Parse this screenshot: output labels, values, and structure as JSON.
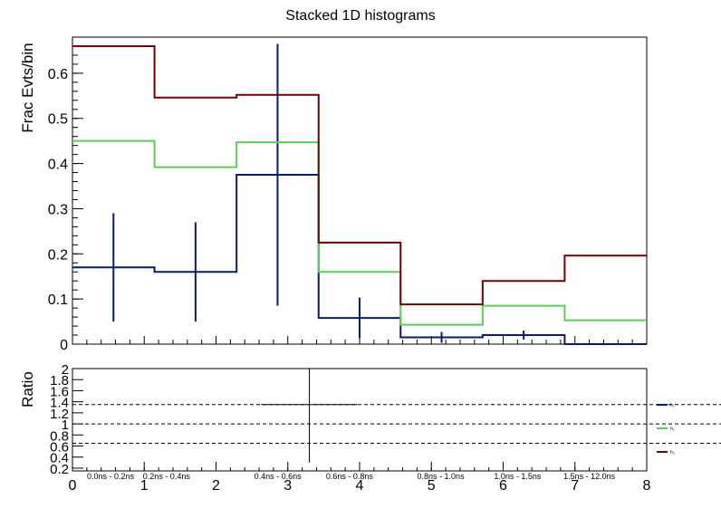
{
  "title": "Stacked 1D histograms",
  "chart_data": [
    {
      "type": "line",
      "subtype": "stacked-step-histogram",
      "ylabel": "Frac Evts/bin",
      "ylim": [
        0,
        0.68
      ],
      "x_bin_edges": [
        0,
        1.143,
        2.286,
        3.429,
        4.571,
        5.714,
        6.857,
        8
      ],
      "series": [
        {
          "color": "#0b1a6e",
          "values": [
            0.17,
            0.16,
            0.375,
            0.058,
            0.015,
            0.02,
            0.0
          ],
          "errors": [
            0.12,
            0.11,
            0.29,
            0.045,
            0.012,
            0.01,
            0.0
          ]
        },
        {
          "color": "#5ccd55",
          "values": [
            0.45,
            0.392,
            0.447,
            0.16,
            0.043,
            0.085,
            0.053
          ]
        },
        {
          "color": "#730000",
          "values": [
            0.66,
            0.546,
            0.552,
            0.225,
            0.088,
            0.14,
            0.196
          ]
        }
      ],
      "y_ticks": [
        "0",
        "0.1",
        "0.2",
        "0.3",
        "0.4",
        "0.5",
        "0.6"
      ],
      "y_tick_values": [
        0,
        0.1,
        0.2,
        0.3,
        0.4,
        0.5,
        0.6
      ]
    },
    {
      "type": "scatter",
      "subtype": "ratio",
      "ylabel": "Ratio",
      "xlim": [
        0,
        8
      ],
      "ylim": [
        0.15,
        2.0
      ],
      "x_ticks": [
        "0",
        "1",
        "2",
        "3",
        "4",
        "5",
        "6",
        "7",
        "8"
      ],
      "x_tick_values": [
        0,
        1,
        2,
        3,
        4,
        5,
        6,
        7,
        8
      ],
      "y_ticks": [
        "0.2",
        "0.4",
        "0.6",
        "0.8",
        "1",
        "1.2",
        "1.4",
        "1.6",
        "1.8",
        "2"
      ],
      "y_tick_values": [
        0.2,
        0.4,
        0.6,
        0.8,
        1.0,
        1.2,
        1.4,
        1.6,
        1.8,
        2.0
      ],
      "reference_lines": [
        1.35,
        1.0,
        0.65
      ],
      "points": [
        {
          "x": 3.3,
          "y": 1.35,
          "x_low": 2.63,
          "x_high": 3.97,
          "y_low": 0.3,
          "y_high": 2.0
        }
      ],
      "bin_labels": [
        "0.0ns - 0.2ns",
        "0.2ns - 0.4ns",
        "0.4ns - 0.6ns",
        "0.6ns - 0.8ns",
        "0.8ns - 1.0ns",
        "1.0ns - 1.5ns",
        "1.5ns - 12.0ns"
      ],
      "bin_label_x": [
        0.53,
        1.31,
        2.86,
        3.86,
        5.13,
        6.2,
        7.2
      ]
    }
  ],
  "legend": {
    "entries": [
      {
        "color": "#0b1a6e",
        "label": "h₁"
      },
      {
        "color": "#5ccd55",
        "label": "h₂"
      },
      {
        "color": "#730000",
        "label": "h₃"
      }
    ]
  }
}
